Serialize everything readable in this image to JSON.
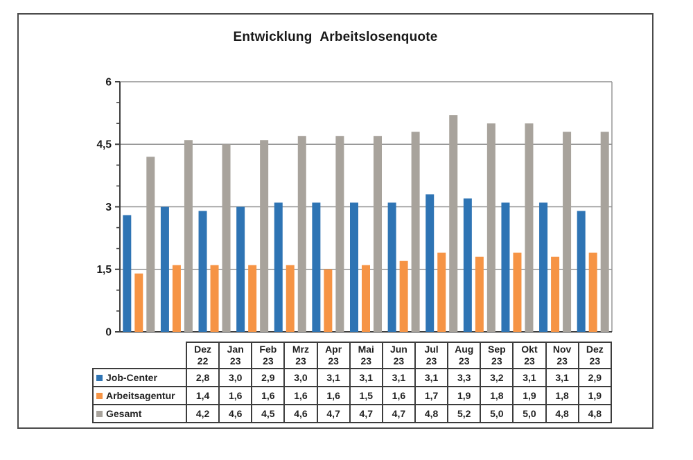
{
  "colors": {
    "job_center": "#2E74B4",
    "arbeitsagentur": "#F69445",
    "gesamt": "#A8A39C",
    "gridline": "#909090",
    "axis": "#3f3f3f",
    "plot_border": "#909090",
    "frame_border": "#4a4a4a",
    "text": "#1a1a1a"
  },
  "chart_data": {
    "type": "bar",
    "title": "Entwicklung Arbeitslosenquote",
    "xlabel": "",
    "ylabel": "",
    "ylim": [
      0,
      6
    ],
    "y_major_ticks": [
      0,
      1.5,
      3,
      4.5,
      6
    ],
    "y_tick_labels": [
      "0",
      "1,5",
      "3",
      "4,5",
      "6"
    ],
    "y_minor_step": 0.5,
    "grid": true,
    "decimal_separator": ",",
    "legend_position": "table-rows-left",
    "categories": [
      "Dez 22",
      "Jan 23",
      "Feb 23",
      "Mrz 23",
      "Apr 23",
      "Mai 23",
      "Jun 23",
      "Jul 23",
      "Aug 23",
      "Sep 23",
      "Okt 23",
      "Nov 23",
      "Dez 23"
    ],
    "series": [
      {
        "name": "Job-Center",
        "color": "#2E74B4",
        "values": [
          2.8,
          3.0,
          2.9,
          3.0,
          3.1,
          3.1,
          3.1,
          3.1,
          3.3,
          3.2,
          3.1,
          3.1,
          2.9
        ]
      },
      {
        "name": "Arbeitsagentur",
        "color": "#F69445",
        "values": [
          1.4,
          1.6,
          1.6,
          1.6,
          1.6,
          1.5,
          1.6,
          1.7,
          1.9,
          1.8,
          1.9,
          1.8,
          1.9
        ]
      },
      {
        "name": "Gesamt",
        "color": "#A8A39C",
        "values": [
          4.2,
          4.6,
          4.5,
          4.6,
          4.7,
          4.7,
          4.7,
          4.8,
          5.2,
          5.0,
          5.0,
          4.8,
          4.8
        ]
      }
    ]
  }
}
